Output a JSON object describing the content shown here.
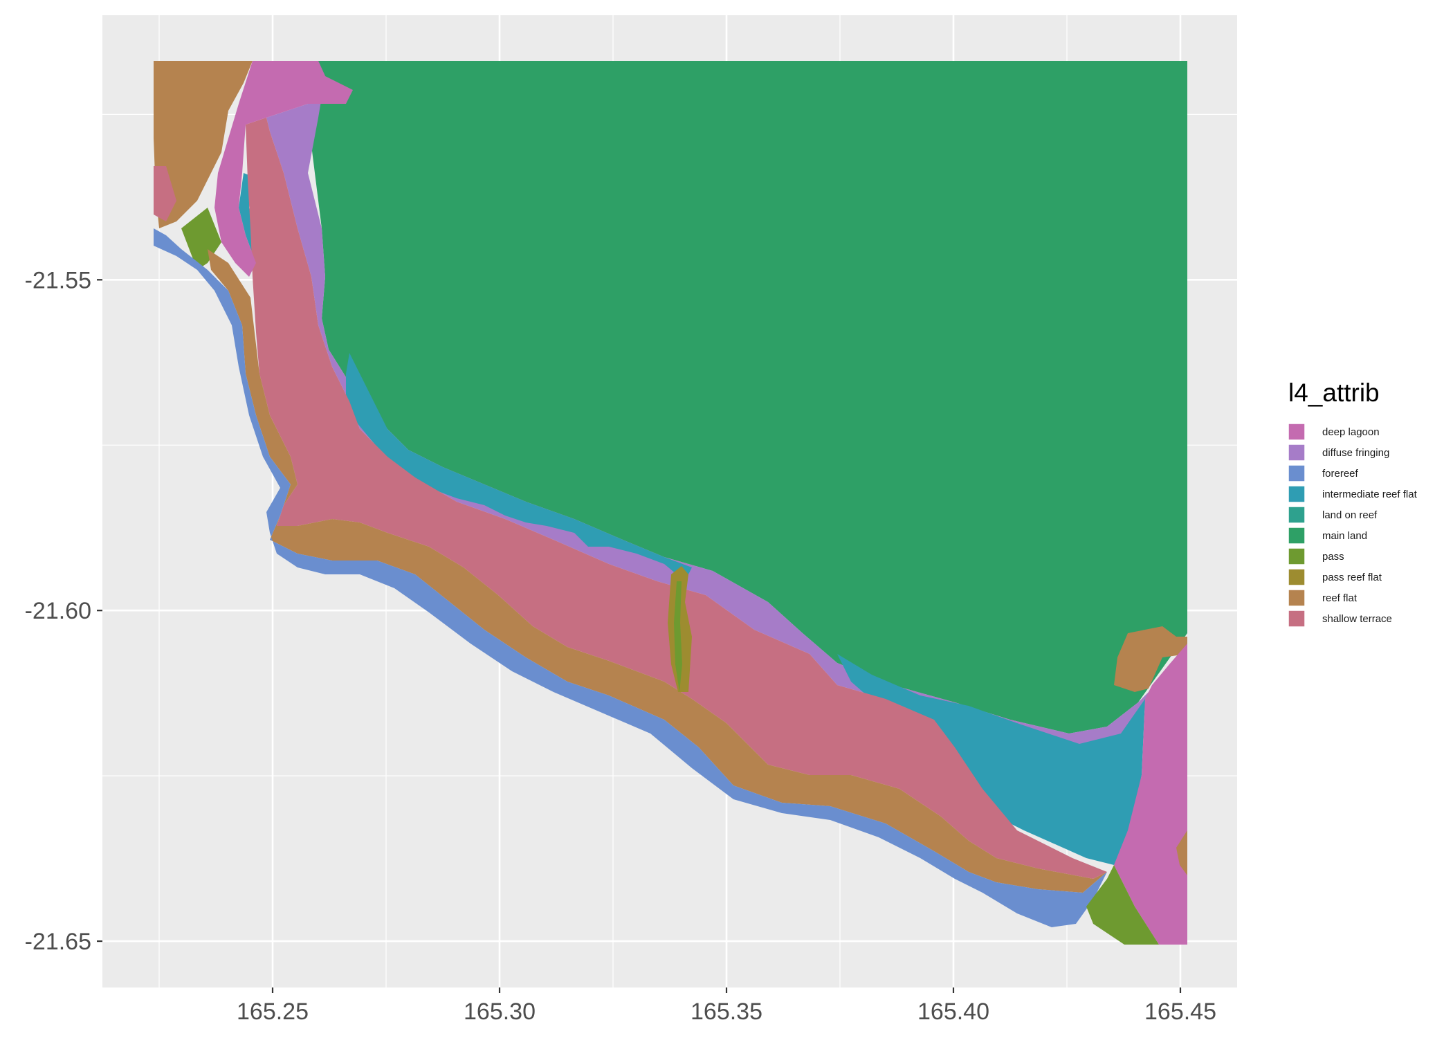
{
  "chart_data": {
    "type": "map",
    "title": "",
    "xlabel": "",
    "ylabel": "",
    "x_ticks": [
      "165.25",
      "165.30",
      "165.35",
      "165.40",
      "165.45"
    ],
    "y_ticks": [
      "-21.55",
      "-21.60",
      "-21.65"
    ],
    "x_tick_values": [
      165.25,
      165.3,
      165.35,
      165.4,
      165.45
    ],
    "y_tick_values": [
      -21.55,
      -21.6,
      -21.65
    ],
    "xlim": [
      165.2125,
      165.4625
    ],
    "ylim": [
      -21.657,
      -21.51
    ],
    "grid": true,
    "legend": {
      "title": "l4_attrib",
      "position": "right",
      "items": [
        {
          "label": "deep lagoon",
          "color": "#C46BB0"
        },
        {
          "label": "diffuse fringing",
          "color": "#A67CC8"
        },
        {
          "label": "forereef",
          "color": "#6A8ECF"
        },
        {
          "label": "intermediate reef flat",
          "color": "#2F9DB3"
        },
        {
          "label": "land on reef",
          "color": "#2EA18E"
        },
        {
          "label": "main land",
          "color": "#2EA066"
        },
        {
          "label": "pass",
          "color": "#6E9A30"
        },
        {
          "label": "pass reef flat",
          "color": "#9D8C30"
        },
        {
          "label": "reef flat",
          "color": "#B5834F"
        },
        {
          "label": "shallow terrace",
          "color": "#C66F82"
        }
      ]
    }
  }
}
